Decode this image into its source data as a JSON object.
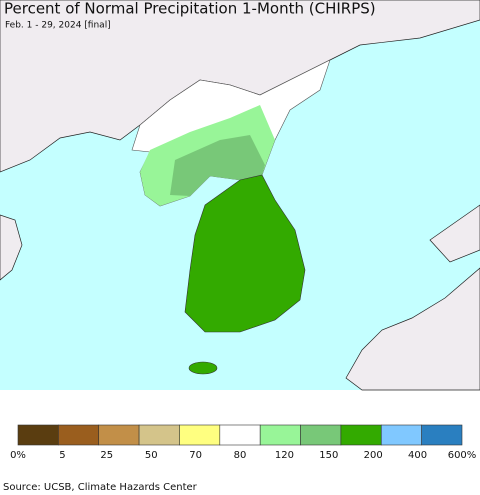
{
  "title": "Percent of Normal Precipitation 1-Month (CHIRPS)",
  "subtitle": "Feb. 1 - 29, 2024 [final]",
  "legend": {
    "colors": [
      "#5a3d10",
      "#9a5e1e",
      "#c28f48",
      "#d4c48a",
      "#ffff80",
      "#ffffff",
      "#98f598",
      "#78c878",
      "#33aa00",
      "#80c8ff",
      "#2a7fc0"
    ],
    "labels": [
      "0%",
      "5",
      "25",
      "50",
      "70",
      "80",
      "120",
      "150",
      "200",
      "400",
      "600%"
    ]
  },
  "source": "Source: UCSB, Climate Hazards Center"
}
